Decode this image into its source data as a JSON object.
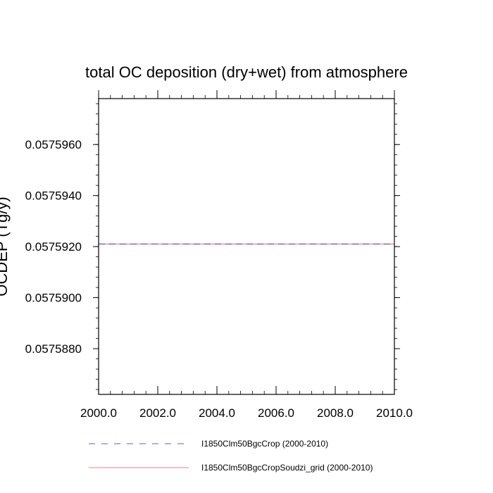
{
  "chart_data": {
    "type": "line",
    "title": "total OC deposition (dry+wet) from atmosphere",
    "ylabel": "OCDEP  (Tg/y)",
    "xlabel": "",
    "xlim": [
      2000.0,
      2010.0
    ],
    "ylim": [
      0.057586208,
      0.0575978
    ],
    "x_ticks": [
      "2000.0",
      "2002.0",
      "2004.0",
      "2006.0",
      "2008.0",
      "2010.0"
    ],
    "y_ticks": [
      "0.0575880",
      "0.0575900",
      "0.0575920",
      "0.0575940",
      "0.0575960"
    ],
    "grid": false,
    "legend_position": "bottom",
    "series": [
      {
        "name": "I1850Clm50BgcCrop (2000-2010)",
        "color": "#6a5acd",
        "style": "dashed",
        "x": [
          2000.0,
          2010.0
        ],
        "y": [
          0.0575921,
          0.0575921
        ]
      },
      {
        "name": "I1850Clm50BgcCropSoudzi_grid (2000-2010)",
        "color": "#f08080",
        "style": "solid",
        "x": [
          2000.0,
          2010.0
        ],
        "y": [
          0.0575921,
          0.0575921
        ]
      }
    ]
  }
}
